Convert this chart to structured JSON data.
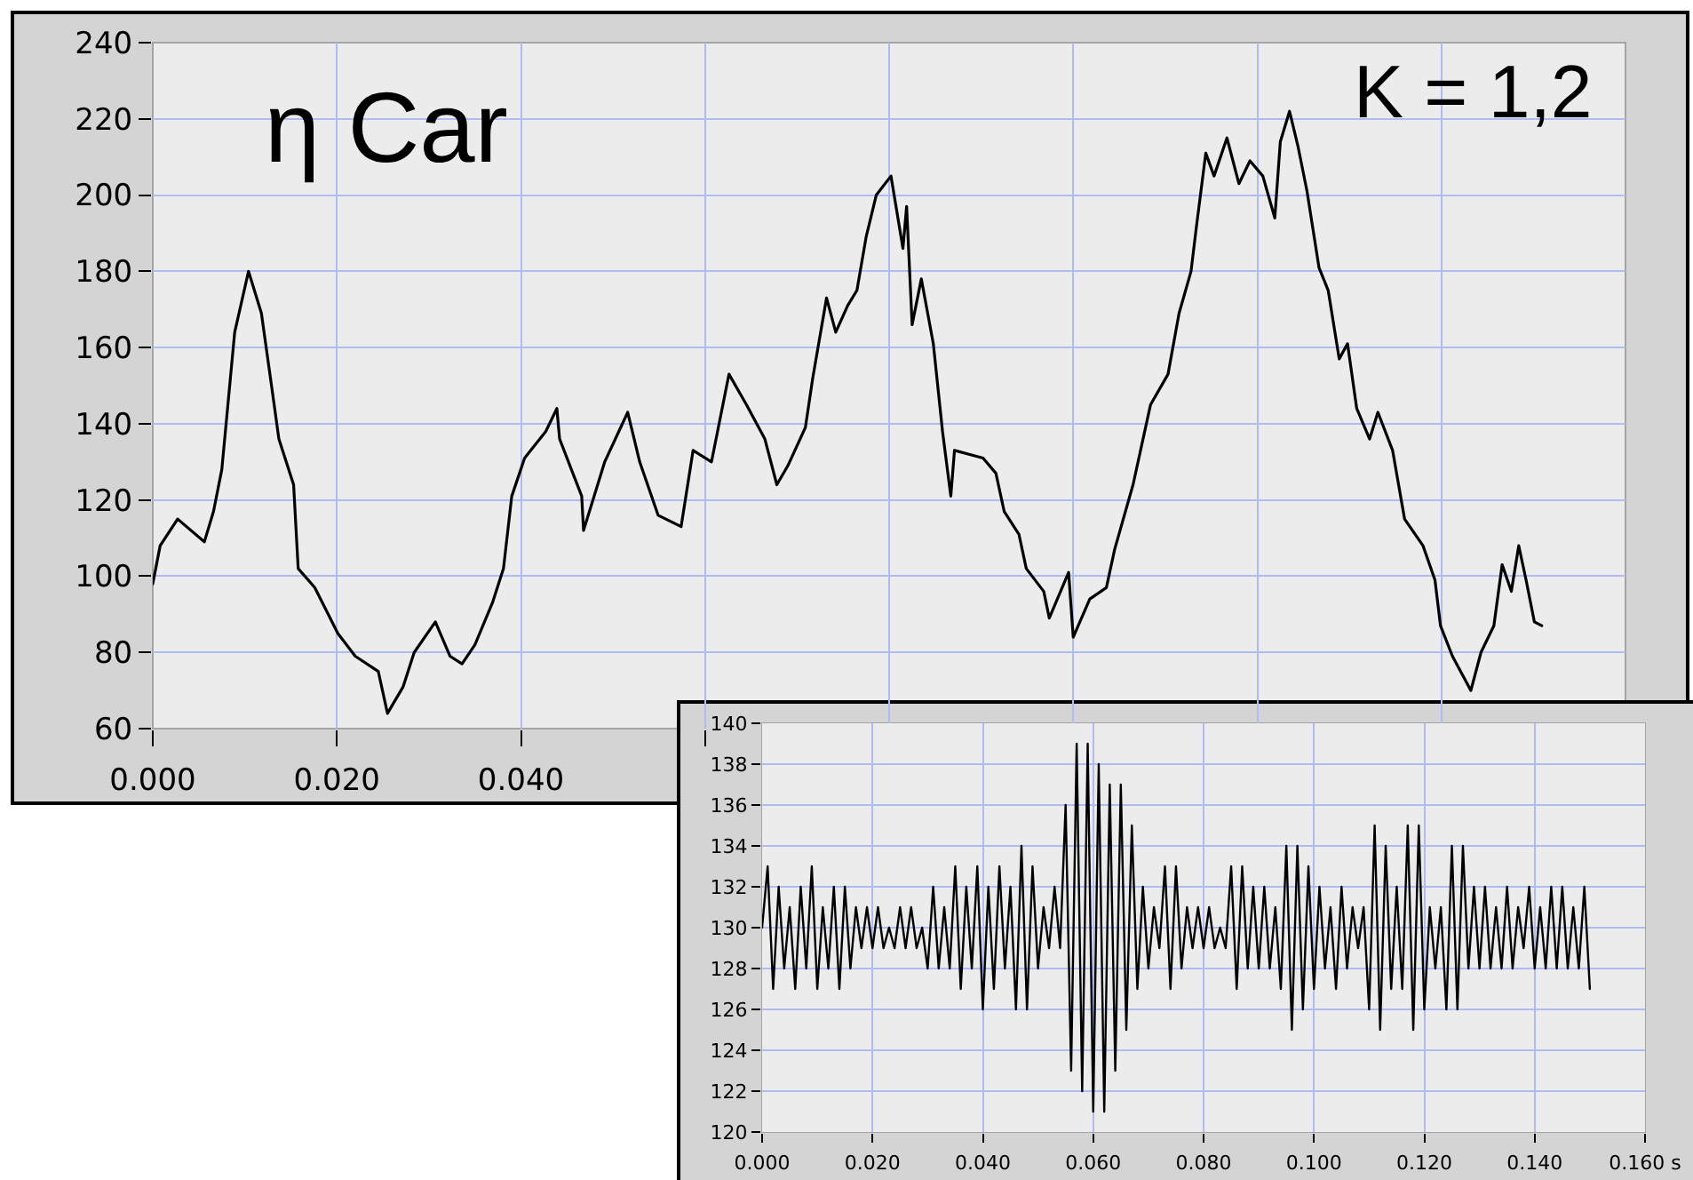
{
  "chart_data": [
    {
      "type": "line",
      "color": "#000000",
      "x": [
        0,
        0.0008,
        0.0027,
        0.0056,
        0.0066,
        0.0075,
        0.0089,
        0.0104,
        0.0118,
        0.0129,
        0.0137,
        0.0153,
        0.0158,
        0.0176,
        0.0201,
        0.022,
        0.0245,
        0.0255,
        0.0272,
        0.0284,
        0.0307,
        0.0323,
        0.0336,
        0.035,
        0.0369,
        0.0381,
        0.039,
        0.0404,
        0.0427,
        0.0439,
        0.0442,
        0.0466,
        0.0468,
        0.0491,
        0.0516,
        0.0529,
        0.0549,
        0.0574,
        0.0587,
        0.0607,
        0.0626,
        0.0645,
        0.0665,
        0.0678,
        0.069,
        0.0709,
        0.0717,
        0.0732,
        0.0742,
        0.0755,
        0.0765,
        0.0775,
        0.0786,
        0.0802,
        0.0815,
        0.0819,
        0.0825,
        0.0835,
        0.0848,
        0.0858,
        0.0867,
        0.0871,
        0.0902,
        0.0916,
        0.0925,
        0.0941,
        0.0949,
        0.0968,
        0.0974,
        0.0995,
        0.1,
        0.1018,
        0.1036,
        0.1045,
        0.1065,
        0.1084,
        0.1103,
        0.1115,
        0.1128,
        0.1134,
        0.1144,
        0.1153,
        0.1167,
        0.118,
        0.1192,
        0.1206,
        0.1219,
        0.1225,
        0.1235,
        0.1244,
        0.1254,
        0.1267,
        0.1277,
        0.1289,
        0.1298,
        0.1308,
        0.1322,
        0.1331,
        0.1347,
        0.136,
        0.138,
        0.1393,
        0.1399,
        0.1412,
        0.1432,
        0.1443,
        0.1457,
        0.1466,
        0.1476,
        0.1484,
        0.1492,
        0.1501,
        0.1509
      ],
      "values": [
        98,
        108,
        115,
        109,
        117,
        128,
        164,
        180,
        169,
        150,
        136,
        124,
        102,
        97,
        85,
        79,
        75,
        64,
        71,
        80,
        88,
        79,
        77,
        82,
        93,
        102,
        121,
        131,
        138,
        144,
        136,
        121,
        112,
        130,
        143,
        130,
        116,
        113,
        133,
        130,
        153,
        145,
        136,
        124,
        129,
        139,
        152,
        173,
        164,
        171,
        175,
        189,
        200,
        205,
        186,
        197,
        166,
        178,
        161,
        138,
        121,
        133,
        131,
        127,
        117,
        111,
        102,
        96,
        89,
        101,
        84,
        94,
        97,
        107,
        124,
        145,
        153,
        169,
        180,
        192,
        211,
        205,
        215,
        203,
        209,
        205,
        194,
        214,
        222,
        213,
        201,
        181,
        175,
        157,
        161,
        144,
        136,
        143,
        133,
        115,
        108,
        99,
        87,
        79,
        70,
        80,
        87,
        103,
        96,
        108,
        99,
        88,
        87
      ],
      "xlim": [
        0,
        0.16
      ],
      "ylim": [
        60,
        240
      ],
      "xticks": [
        {
          "value": 0,
          "label": "0.000"
        },
        {
          "value": 0.02,
          "label": "0.020"
        },
        {
          "value": 0.04,
          "label": "0.040"
        },
        {
          "value": 0.06,
          "label": null
        },
        {
          "value": 0.08,
          "label": null
        },
        {
          "value": 0.1,
          "label": null
        },
        {
          "value": 0.12,
          "label": null
        },
        {
          "value": 0.14,
          "label": null
        },
        {
          "value": 0.16,
          "label": null
        }
      ],
      "yticks": [
        60,
        80,
        100,
        120,
        140,
        160,
        180,
        200,
        220,
        240
      ],
      "grid": true,
      "annotations": [
        "η Car",
        "K = 1,2"
      ]
    },
    {
      "type": "line",
      "color": "#000000",
      "x": [
        0,
        0.001,
        0.002,
        0.003,
        0.004,
        0.005,
        0.006,
        0.007,
        0.008,
        0.009,
        0.01,
        0.011,
        0.012,
        0.013,
        0.014,
        0.015,
        0.016,
        0.017,
        0.018,
        0.019,
        0.02,
        0.021,
        0.022,
        0.023,
        0.024,
        0.025,
        0.026,
        0.027,
        0.028,
        0.029,
        0.03,
        0.031,
        0.032,
        0.033,
        0.034,
        0.035,
        0.036,
        0.037,
        0.038,
        0.039,
        0.04,
        0.041,
        0.042,
        0.043,
        0.044,
        0.045,
        0.046,
        0.047,
        0.048,
        0.049,
        0.05,
        0.051,
        0.052,
        0.053,
        0.054,
        0.055,
        0.056,
        0.057,
        0.058,
        0.059,
        0.06,
        0.061,
        0.062,
        0.063,
        0.064,
        0.065,
        0.066,
        0.067,
        0.068,
        0.069,
        0.07,
        0.071,
        0.072,
        0.073,
        0.074,
        0.075,
        0.076,
        0.077,
        0.078,
        0.079,
        0.08,
        0.081,
        0.082,
        0.083,
        0.084,
        0.085,
        0.086,
        0.087,
        0.088,
        0.089,
        0.09,
        0.091,
        0.092,
        0.093,
        0.094,
        0.095,
        0.096,
        0.097,
        0.098,
        0.099,
        0.1,
        0.101,
        0.102,
        0.103,
        0.104,
        0.105,
        0.106,
        0.107,
        0.108,
        0.109,
        0.11,
        0.111,
        0.112,
        0.113,
        0.114,
        0.115,
        0.116,
        0.117,
        0.118,
        0.119,
        0.12,
        0.121,
        0.122,
        0.123,
        0.124,
        0.125,
        0.126,
        0.127,
        0.128,
        0.129,
        0.13,
        0.131,
        0.132,
        0.133,
        0.134,
        0.135,
        0.136,
        0.137,
        0.138,
        0.139,
        0.14,
        0.141,
        0.142,
        0.143,
        0.144,
        0.145,
        0.146,
        0.147,
        0.148,
        0.149,
        0.15
      ],
      "values": [
        130,
        133,
        127,
        132,
        128,
        131,
        127,
        132,
        128,
        133,
        127,
        131,
        128,
        132,
        127,
        132,
        128,
        131,
        129,
        131,
        129,
        131,
        129,
        130,
        129,
        131,
        129,
        131,
        129,
        130,
        128,
        132,
        128,
        131,
        128,
        133,
        127,
        132,
        128,
        133,
        126,
        132,
        127,
        133,
        128,
        132,
        126,
        134,
        126,
        133,
        128,
        131,
        129,
        132,
        129,
        136,
        123,
        139,
        122,
        139,
        121,
        138,
        121,
        137,
        123,
        137,
        125,
        135,
        127,
        132,
        128,
        131,
        129,
        133,
        127,
        133,
        128,
        131,
        129,
        131,
        129,
        131,
        129,
        130,
        129,
        133,
        127,
        133,
        128,
        132,
        128,
        132,
        128,
        131,
        127,
        134,
        125,
        134,
        126,
        133,
        127,
        132,
        128,
        131,
        127,
        132,
        128,
        131,
        129,
        131,
        126,
        135,
        125,
        134,
        127,
        132,
        127,
        135,
        125,
        135,
        126,
        131,
        128,
        131,
        126,
        134,
        126,
        134,
        128,
        132,
        128,
        132,
        128,
        131,
        128,
        132,
        128,
        131,
        129,
        132,
        128,
        131,
        128,
        132,
        128,
        132,
        128,
        131,
        128,
        132,
        127
      ],
      "xlim": [
        0,
        0.16
      ],
      "ylim": [
        120,
        140
      ],
      "xticks": [
        {
          "value": 0,
          "label": "0.000"
        },
        {
          "value": 0.02,
          "label": "0.020"
        },
        {
          "value": 0.04,
          "label": "0.040"
        },
        {
          "value": 0.06,
          "label": "0.060"
        },
        {
          "value": 0.08,
          "label": "0.080"
        },
        {
          "value": 0.1,
          "label": "0.100"
        },
        {
          "value": 0.12,
          "label": "0.120"
        },
        {
          "value": 0.14,
          "label": "0.140"
        },
        {
          "value": 0.16,
          "label": "0.160 s"
        }
      ],
      "yticks": [
        120,
        122,
        124,
        126,
        128,
        130,
        132,
        134,
        136,
        138,
        140
      ],
      "grid": true
    }
  ]
}
